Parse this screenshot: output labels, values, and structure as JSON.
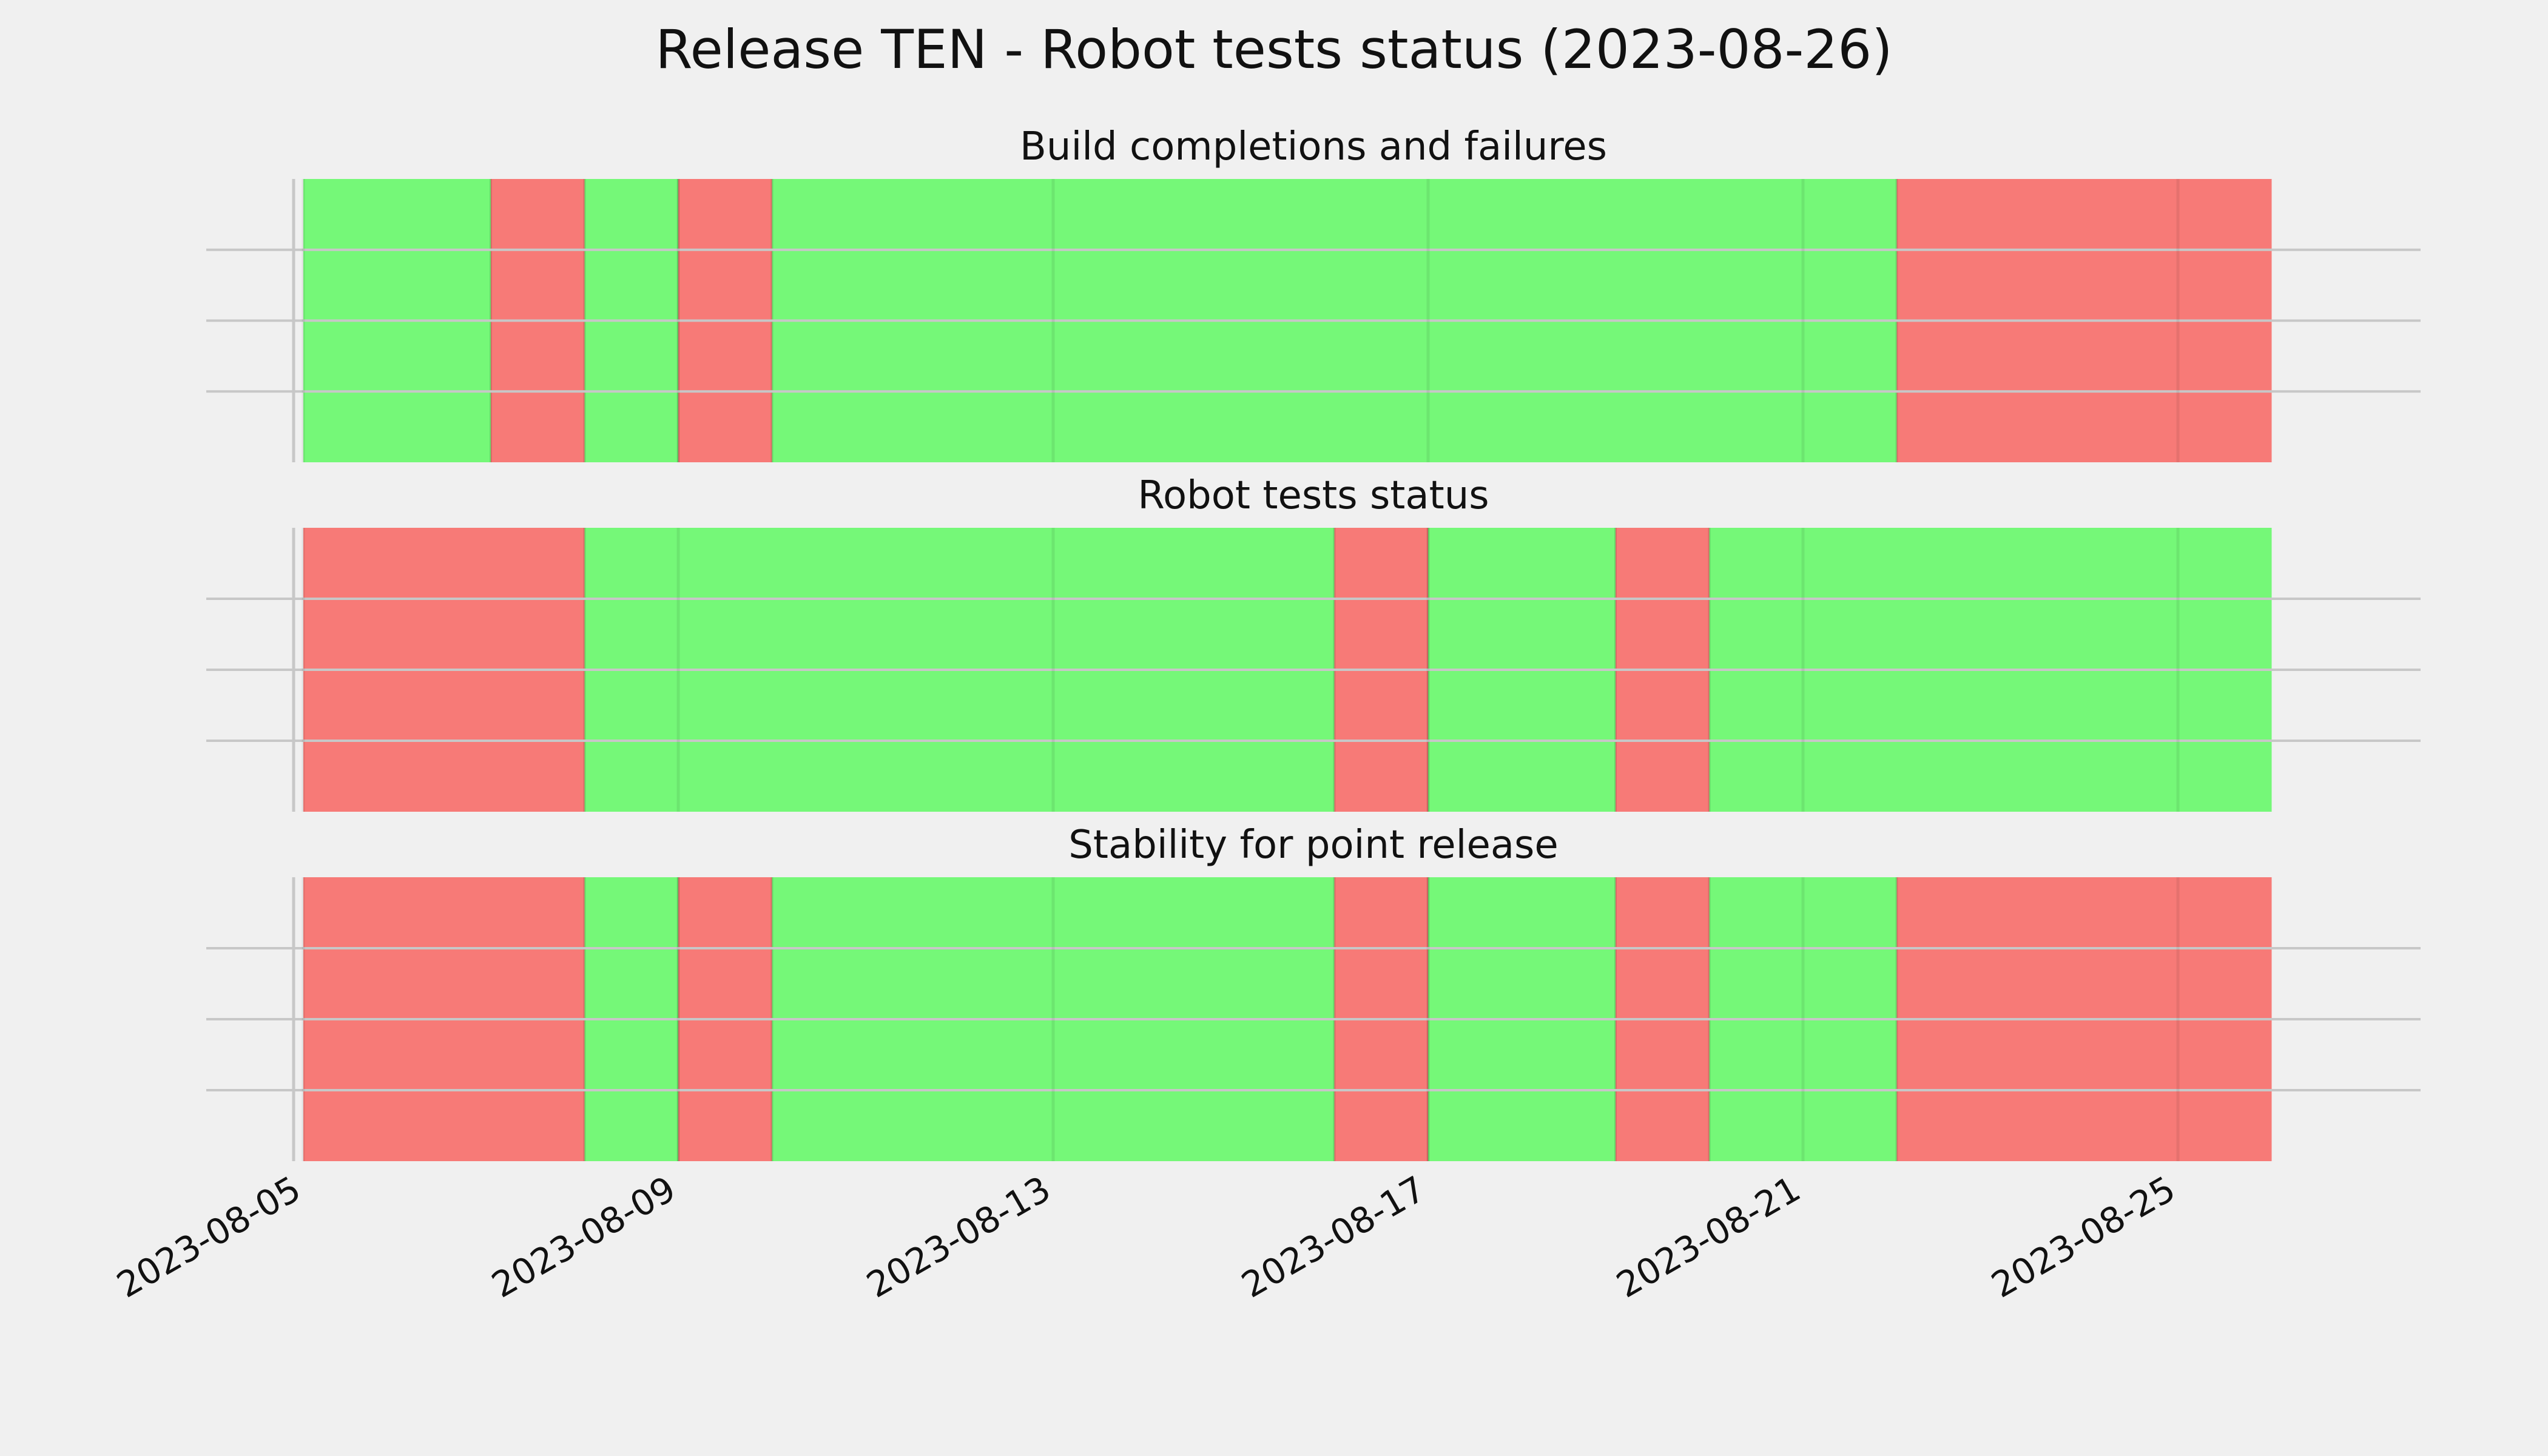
{
  "chart_data": {
    "type": "timeline",
    "title": "Release TEN - Robot tests status (2023-08-26)",
    "x_axis": {
      "type": "date",
      "range": [
        "2023-08-05",
        "2023-08-27"
      ],
      "ticks": [
        "2023-08-05",
        "2023-08-09",
        "2023-08-13",
        "2023-08-17",
        "2023-08-21",
        "2023-08-25"
      ]
    },
    "status_colors": {
      "pass": "#75f878",
      "fail": "#f77a77"
    },
    "grid": true,
    "panels": [
      {
        "title": "Build completions and failures",
        "segments": [
          {
            "start": "2023-08-05",
            "end": "2023-08-07",
            "status": "pass"
          },
          {
            "start": "2023-08-07",
            "end": "2023-08-08",
            "status": "fail"
          },
          {
            "start": "2023-08-08",
            "end": "2023-08-09",
            "status": "pass"
          },
          {
            "start": "2023-08-09",
            "end": "2023-08-10",
            "status": "fail"
          },
          {
            "start": "2023-08-10",
            "end": "2023-08-22",
            "status": "pass"
          },
          {
            "start": "2023-08-22",
            "end": "2023-08-26",
            "status": "fail"
          }
        ]
      },
      {
        "title": "Robot tests status",
        "segments": [
          {
            "start": "2023-08-05",
            "end": "2023-08-08",
            "status": "fail"
          },
          {
            "start": "2023-08-08",
            "end": "2023-08-16",
            "status": "pass"
          },
          {
            "start": "2023-08-16",
            "end": "2023-08-17",
            "status": "fail"
          },
          {
            "start": "2023-08-17",
            "end": "2023-08-19",
            "status": "pass"
          },
          {
            "start": "2023-08-19",
            "end": "2023-08-20",
            "status": "fail"
          },
          {
            "start": "2023-08-20",
            "end": "2023-08-26",
            "status": "pass"
          }
        ]
      },
      {
        "title": "Stability for point release",
        "segments": [
          {
            "start": "2023-08-05",
            "end": "2023-08-08",
            "status": "fail"
          },
          {
            "start": "2023-08-08",
            "end": "2023-08-09",
            "status": "pass"
          },
          {
            "start": "2023-08-09",
            "end": "2023-08-10",
            "status": "fail"
          },
          {
            "start": "2023-08-10",
            "end": "2023-08-16",
            "status": "pass"
          },
          {
            "start": "2023-08-16",
            "end": "2023-08-17",
            "status": "fail"
          },
          {
            "start": "2023-08-17",
            "end": "2023-08-19",
            "status": "pass"
          },
          {
            "start": "2023-08-19",
            "end": "2023-08-20",
            "status": "fail"
          },
          {
            "start": "2023-08-20",
            "end": "2023-08-22",
            "status": "pass"
          },
          {
            "start": "2023-08-22",
            "end": "2023-08-26",
            "status": "fail"
          }
        ]
      }
    ]
  }
}
